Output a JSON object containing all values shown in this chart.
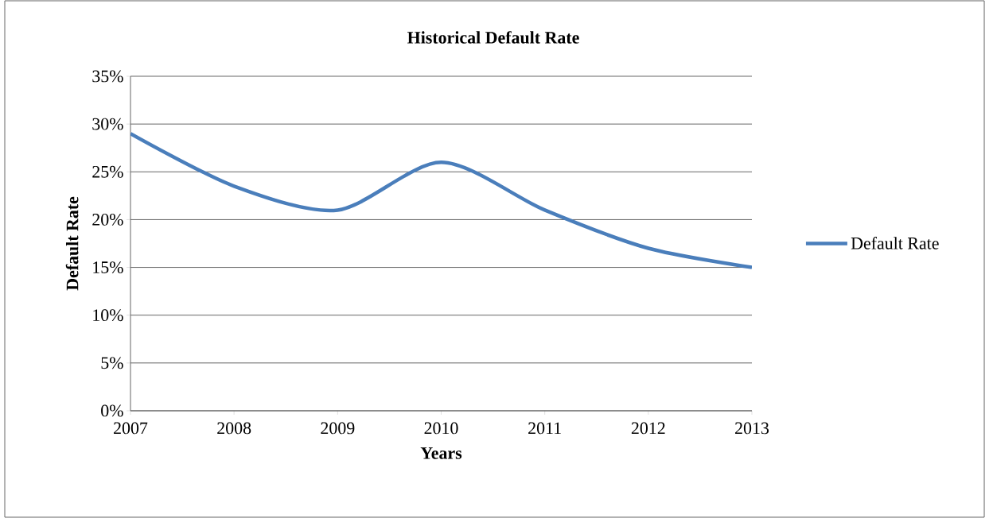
{
  "chart_data": {
    "type": "line",
    "title": "Historical Default Rate",
    "xlabel": "Years",
    "ylabel": "Default Rate",
    "categories": [
      "2007",
      "2008",
      "2009",
      "2010",
      "2011",
      "2012",
      "2013"
    ],
    "series": [
      {
        "name": "Default Rate",
        "color": "#4a7ebb",
        "values": [
          29,
          23.5,
          21,
          26,
          21,
          17,
          15
        ]
      }
    ],
    "ylim": [
      0,
      35
    ],
    "yticks": [
      {
        "value": 0,
        "label": "0%"
      },
      {
        "value": 5,
        "label": "5%"
      },
      {
        "value": 10,
        "label": "10%"
      },
      {
        "value": 15,
        "label": "15%"
      },
      {
        "value": 20,
        "label": "20%"
      },
      {
        "value": 25,
        "label": "25%"
      },
      {
        "value": 30,
        "label": "30%"
      },
      {
        "value": 35,
        "label": "35%"
      }
    ],
    "grid": "y",
    "legend": "right",
    "marker": "none",
    "line_style": "solid"
  }
}
